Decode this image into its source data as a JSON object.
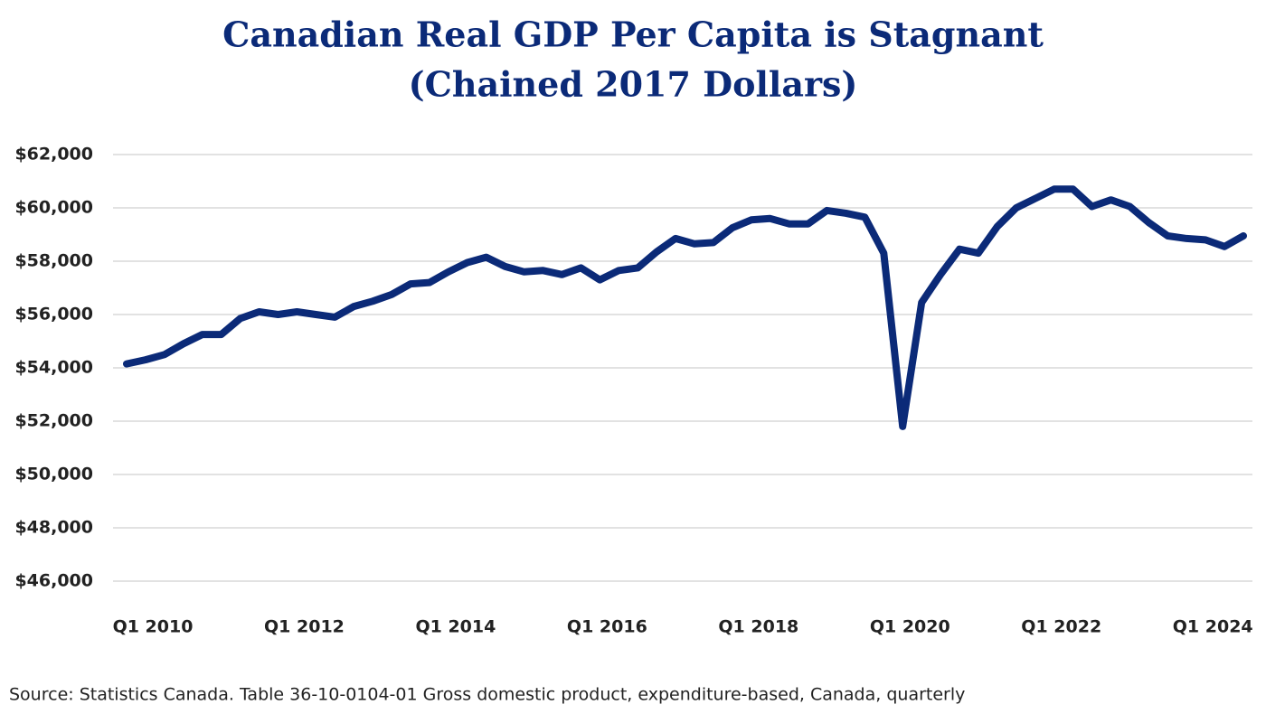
{
  "chart_data": {
    "type": "line",
    "title": "Canadian Real GDP Per Capita is Stagnant",
    "subtitle": "(Chained 2017 Dollars)",
    "source": "Source: Statistics Canada. Table 36-10-0104-01  Gross domestic product, expenditure-based, Canada, quarterly",
    "categories": [
      "Q1 2010",
      null,
      null,
      null,
      null,
      null,
      null,
      null,
      "Q1 2012",
      null,
      null,
      null,
      null,
      null,
      null,
      null,
      "Q1 2014",
      null,
      null,
      null,
      null,
      null,
      null,
      null,
      "Q1 2016",
      null,
      null,
      null,
      null,
      null,
      null,
      null,
      "Q1 2018",
      null,
      null,
      null,
      null,
      null,
      null,
      null,
      "Q1 2020",
      null,
      null,
      null,
      null,
      null,
      null,
      null,
      "Q1 2022",
      null,
      null,
      null,
      null,
      null,
      null,
      null,
      "Q1 2024",
      null,
      null,
      null
    ],
    "series": [
      {
        "name": "Real GDP per capita",
        "color": "#0b2a78",
        "values": [
          54150,
          54300,
          54500,
          54900,
          55250,
          55250,
          55850,
          56100,
          56000,
          56100,
          56000,
          55900,
          56300,
          56500,
          56750,
          57150,
          57200,
          57600,
          57950,
          58150,
          57800,
          57600,
          57650,
          57500,
          57750,
          57300,
          57650,
          57750,
          58350,
          58850,
          58650,
          58700,
          59250,
          59550,
          59600,
          59400,
          59400,
          59900,
          59800,
          59650,
          58300,
          51800,
          56450,
          57500,
          58450,
          58300,
          59300,
          60000,
          60350,
          60700,
          60700,
          60050,
          60300,
          60050,
          59450,
          58950,
          58850,
          58800,
          58550,
          58950
        ]
      }
    ],
    "ylim": [
      45500,
      62000
    ],
    "yticks": [
      {
        "value": 46000,
        "label": "$46,000"
      },
      {
        "value": 48000,
        "label": "$48,000"
      },
      {
        "value": 50000,
        "label": "$50,000"
      },
      {
        "value": 52000,
        "label": "$52,000"
      },
      {
        "value": 54000,
        "label": "$54,000"
      },
      {
        "value": 56000,
        "label": "$56,000"
      },
      {
        "value": 58000,
        "label": "$58,000"
      },
      {
        "value": 60000,
        "label": "$60,000"
      },
      {
        "value": 62000,
        "label": "$62,000"
      }
    ],
    "grid": true
  }
}
